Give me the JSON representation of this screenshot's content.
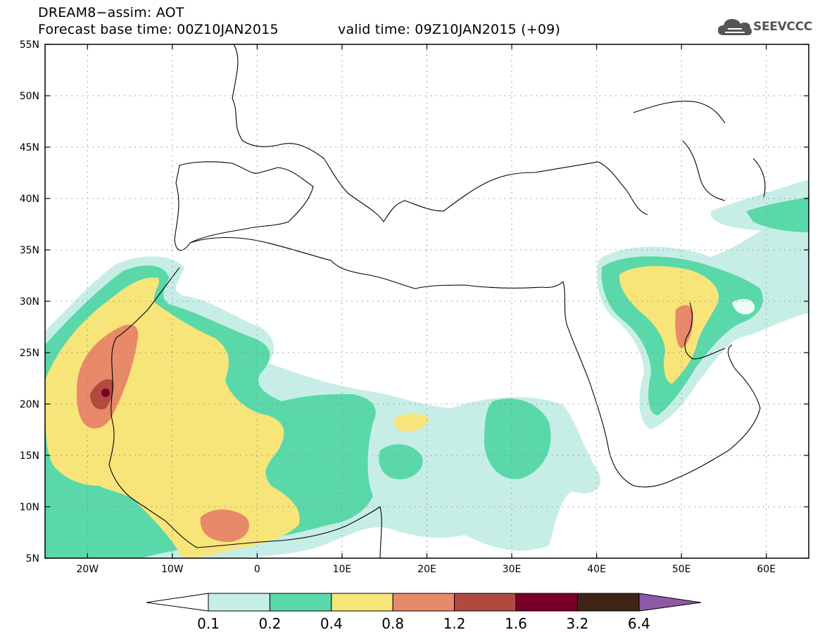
{
  "header": {
    "title_line_1": "DREAM8−assim: AOT",
    "base_time": "Forecast base time: 00Z10JAN2015",
    "valid_time": "valid time: 09Z10JAN2015 (+09)"
  },
  "logo": {
    "text": "SEEVCCC",
    "icon": "cloud-icon"
  },
  "map": {
    "lon_range": [
      -25,
      65
    ],
    "lat_range": [
      5,
      55
    ],
    "lat_ticks": [
      {
        "lat": 55,
        "label": "55N"
      },
      {
        "lat": 50,
        "label": "50N"
      },
      {
        "lat": 45,
        "label": "45N"
      },
      {
        "lat": 40,
        "label": "40N"
      },
      {
        "lat": 35,
        "label": "35N"
      },
      {
        "lat": 30,
        "label": "30N"
      },
      {
        "lat": 25,
        "label": "25N"
      },
      {
        "lat": 20,
        "label": "20N"
      },
      {
        "lat": 15,
        "label": "15N"
      },
      {
        "lat": 10,
        "label": "10N"
      },
      {
        "lat": 5,
        "label": "5N"
      }
    ],
    "lon_ticks": [
      {
        "lon": -20,
        "label": "20W"
      },
      {
        "lon": -10,
        "label": "10W"
      },
      {
        "lon": 0,
        "label": "0"
      },
      {
        "lon": 10,
        "label": "10E"
      },
      {
        "lon": 20,
        "label": "20E"
      },
      {
        "lon": 30,
        "label": "30E"
      },
      {
        "lon": 40,
        "label": "40E"
      },
      {
        "lon": 50,
        "label": "50E"
      },
      {
        "lon": 60,
        "label": "60E"
      }
    ],
    "grid": true
  },
  "legend": {
    "ticks": [
      "0.1",
      "0.2",
      "0.4",
      "0.8",
      "1.2",
      "1.6",
      "3.2",
      "6.4"
    ],
    "colors": {
      "below": "#ffffff",
      "c1": "#c7eee6",
      "c2": "#5ad8a9",
      "c3": "#f7e57a",
      "c4": "#e8896a",
      "c5": "#b2493f",
      "c6": "#7a0027",
      "c7": "#3d2416",
      "above": "#8d5aa8"
    }
  }
}
